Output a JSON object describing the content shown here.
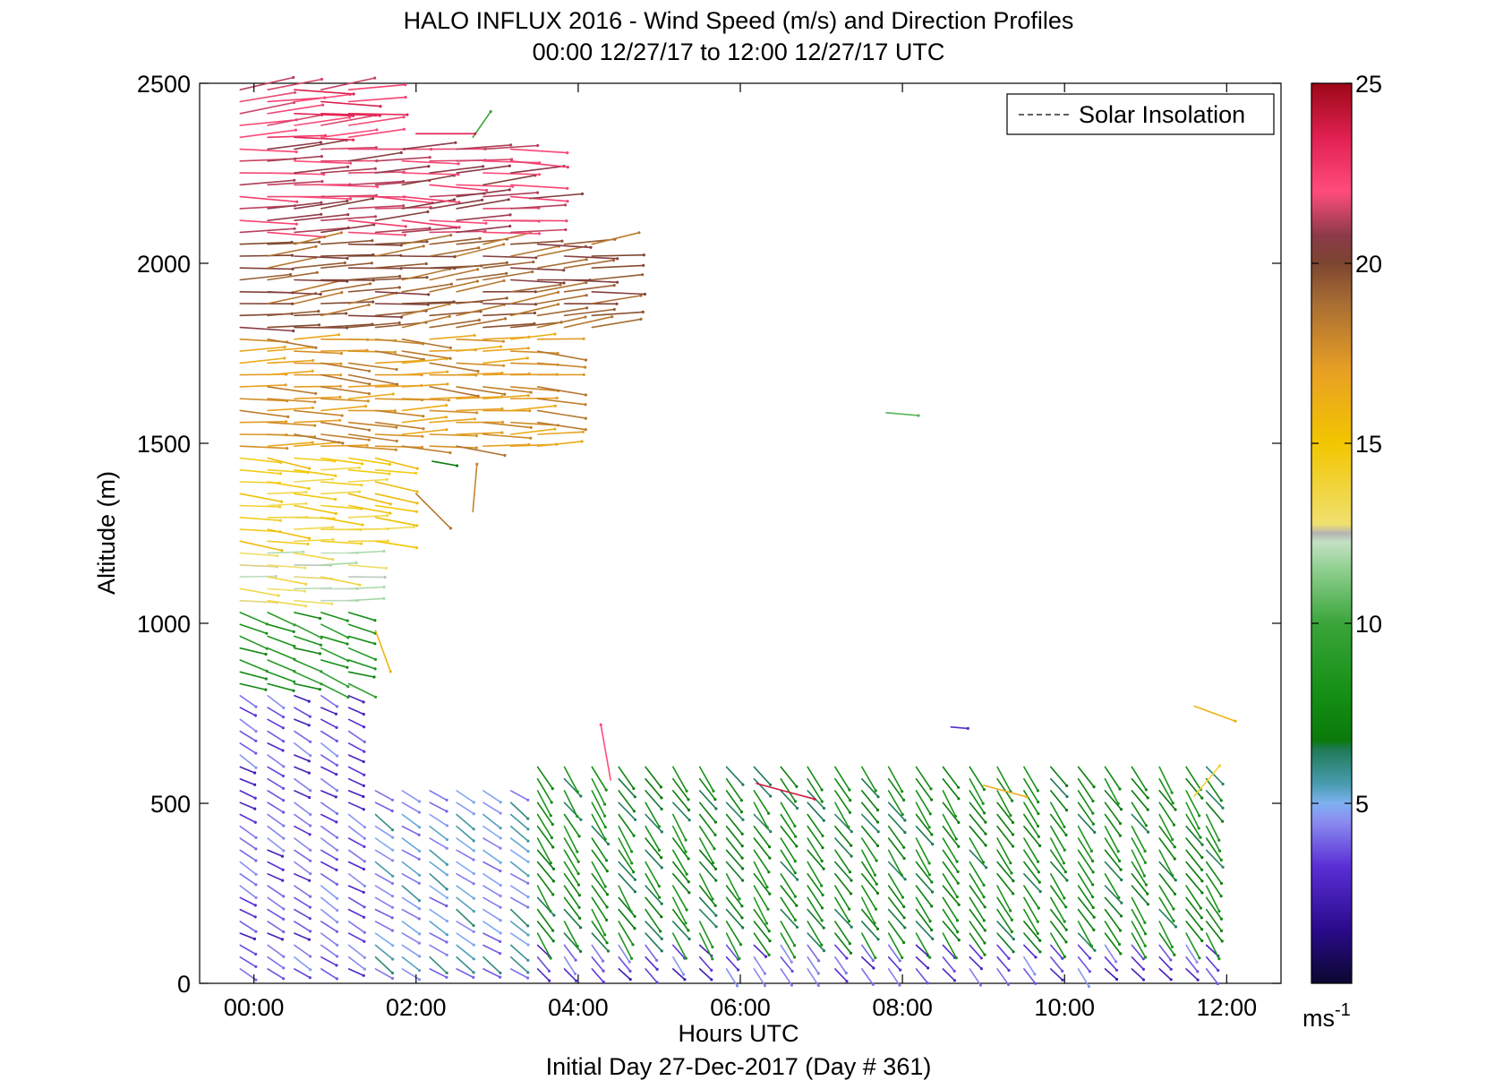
{
  "chart_data": {
    "type": "scatter",
    "subtype": "wind-barb-profile",
    "title": "HALO INFLUX 2016 - Wind Speed (m/s) and Direction Profiles",
    "subtitle": "00:00 12/27/17 to 12:00 12/27/17  UTC",
    "xlabel": "Hours UTC",
    "ylabel": "Altitude (m)",
    "footer": "Initial Day 27-Dec-2017 (Day # 361)",
    "xlim_hours": [
      -0.67,
      12.67
    ],
    "ylim": [
      0,
      2500
    ],
    "x_ticks": [
      {
        "value": 0,
        "label": "00:00"
      },
      {
        "value": 2,
        "label": "02:00"
      },
      {
        "value": 4,
        "label": "04:00"
      },
      {
        "value": 6,
        "label": "06:00"
      },
      {
        "value": 8,
        "label": "08:00"
      },
      {
        "value": 10,
        "label": "10:00"
      },
      {
        "value": 12,
        "label": "12:00"
      }
    ],
    "y_ticks": [
      {
        "value": 0,
        "label": "0"
      },
      {
        "value": 500,
        "label": "500"
      },
      {
        "value": 1000,
        "label": "1000"
      },
      {
        "value": 1500,
        "label": "1500"
      },
      {
        "value": 2000,
        "label": "2000"
      },
      {
        "value": 2500,
        "label": "2500"
      }
    ],
    "legend": {
      "position": "top-right",
      "entries": [
        {
          "label": "Solar Insolation",
          "style": "dashed",
          "color": "#000000"
        }
      ]
    },
    "colorbar": {
      "min": 0,
      "max": 25,
      "ticks": [
        {
          "value": 5,
          "label": "5"
        },
        {
          "value": 10,
          "label": "10"
        },
        {
          "value": 15,
          "label": "15"
        },
        {
          "value": 20,
          "label": "20"
        },
        {
          "value": 25,
          "label": "25"
        }
      ],
      "unit_label": "ms",
      "unit_exp": "-1"
    },
    "profile_times_hours": [
      -0.17,
      0.17,
      0.5,
      0.83,
      1.17,
      1.5,
      1.83,
      2.17,
      2.5,
      2.83,
      3.17,
      3.5,
      3.83,
      4.17,
      4.5,
      4.83,
      5.17,
      5.5,
      5.83,
      6.17,
      6.5,
      6.83,
      7.17,
      7.5,
      7.83,
      8.17,
      8.5,
      8.83,
      9.17,
      9.5,
      9.83,
      10.17,
      10.5,
      10.83,
      11.17,
      11.5,
      11.75
    ],
    "layers": [
      {
        "zmin": 0,
        "zmax": 800,
        "t0": -0.2,
        "t1": 1.4,
        "speed": 3.5,
        "dir_deg": 300
      },
      {
        "zmin": 0,
        "zmax": 560,
        "t0": 1.4,
        "t1": 3.3,
        "speed": 5.0,
        "dir_deg": 305
      },
      {
        "zmin": 0,
        "zmax": 120,
        "t0": 3.3,
        "t1": 11.8,
        "speed": 3.5,
        "dir_deg": 320
      },
      {
        "zmin": 120,
        "zmax": 620,
        "t0": 3.3,
        "t1": 11.8,
        "speed": 7.5,
        "dir_deg": 325
      },
      {
        "zmin": 800,
        "zmax": 1050,
        "t0": -0.2,
        "t1": 1.2,
        "speed": 8.5,
        "dir_deg": 290
      },
      {
        "zmin": 1050,
        "zmax": 1200,
        "t0": -0.2,
        "t1": 1.2,
        "speed": 13.0,
        "dir_deg": 275
      },
      {
        "zmin": 1200,
        "zmax": 1480,
        "t0": -0.2,
        "t1": 1.5,
        "speed": 14.5,
        "dir_deg": 275
      },
      {
        "zmin": 1480,
        "zmax": 1800,
        "t0": -0.2,
        "t1": 3.8,
        "speed": 17.5,
        "dir_deg": 272
      },
      {
        "zmin": 1800,
        "zmax": 2070,
        "t0": -0.2,
        "t1": 4.4,
        "speed": 19.5,
        "dir_deg": 265
      },
      {
        "zmin": 2070,
        "zmax": 2320,
        "t0": -0.2,
        "t1": 3.3,
        "speed": 21.5,
        "dir_deg": 268
      },
      {
        "zmin": 2320,
        "zmax": 2500,
        "t0": -0.2,
        "t1": 1.2,
        "speed": 22.5,
        "dir_deg": 266
      }
    ],
    "level_spacing_m": 33,
    "isolated_barbs": [
      {
        "t": 7.8,
        "z": 1585,
        "speed": 10.5,
        "dir_deg": 275
      },
      {
        "t": 6.2,
        "z": 555,
        "speed": 24.0,
        "dir_deg": 285
      },
      {
        "t": 8.6,
        "z": 712,
        "speed": 3.0,
        "dir_deg": 275
      },
      {
        "t": 11.6,
        "z": 770,
        "speed": 16.0,
        "dir_deg": 290
      },
      {
        "t": 9.0,
        "z": 550,
        "speed": 16.5,
        "dir_deg": 285
      },
      {
        "t": 11.6,
        "z": 520,
        "speed": 14.0,
        "dir_deg": 220
      },
      {
        "t": 4.4,
        "z": 565,
        "speed": 22.0,
        "dir_deg": 170
      },
      {
        "t": 1.5,
        "z": 980,
        "speed": 16.0,
        "dir_deg": 340
      },
      {
        "t": 2.0,
        "z": 1360,
        "speed": 18.5,
        "dir_deg": 315
      },
      {
        "t": 2.7,
        "z": 1310,
        "speed": 18.0,
        "dir_deg": 185
      },
      {
        "t": 2.2,
        "z": 1450,
        "speed": 7.0,
        "dir_deg": 280
      },
      {
        "t": 2.7,
        "z": 2350,
        "speed": 10.0,
        "dir_deg": 215
      },
      {
        "t": 3.4,
        "z": 2180,
        "speed": 20.5,
        "dir_deg": 265
      },
      {
        "t": 2.0,
        "z": 2360,
        "speed": 23.5,
        "dir_deg": 270
      }
    ]
  }
}
